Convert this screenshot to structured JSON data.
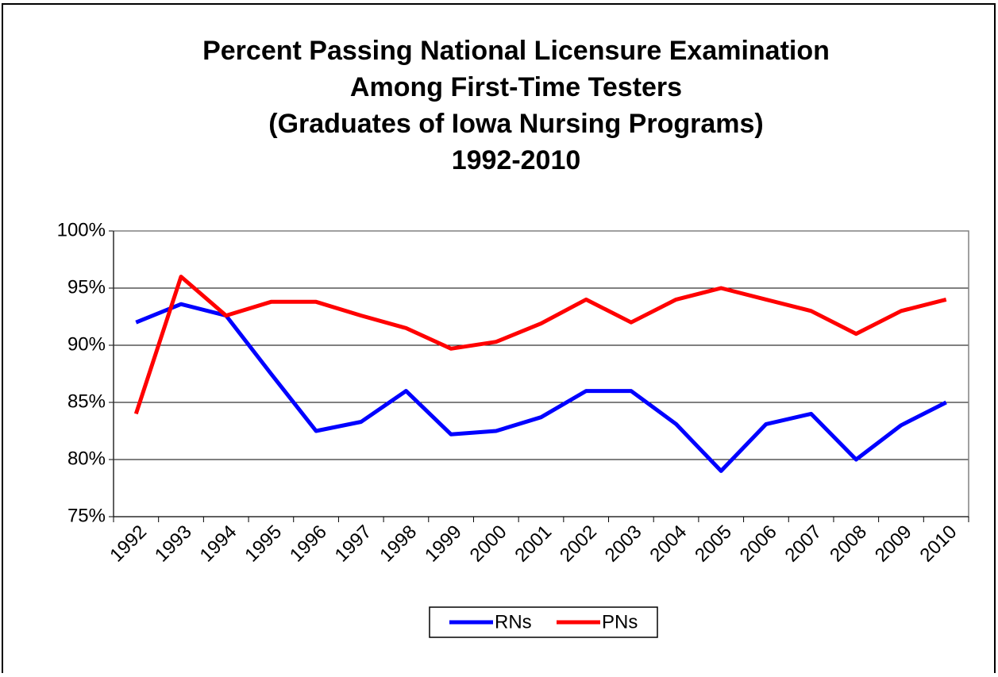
{
  "chart_data": {
    "type": "line",
    "title": [
      "Percent Passing National Licensure Examination",
      "Among First-Time Testers",
      "(Graduates of Iowa Nursing Programs)",
      "1992-2010"
    ],
    "categories": [
      "1992",
      "1993",
      "1994",
      "1995",
      "1996",
      "1997",
      "1998",
      "1999",
      "2000",
      "2001",
      "2002",
      "2003",
      "2004",
      "2005",
      "2006",
      "2007",
      "2008",
      "2009",
      "2010"
    ],
    "series": [
      {
        "name": "RNs",
        "color": "#0000ff",
        "values": [
          92.0,
          93.6,
          92.6,
          87.5,
          82.5,
          83.3,
          86.0,
          82.2,
          82.5,
          83.7,
          86.0,
          86.0,
          83.1,
          79.0,
          83.1,
          84.0,
          80.0,
          83.0,
          85.0
        ]
      },
      {
        "name": "PNs",
        "color": "#ff0000",
        "values": [
          84.0,
          96.0,
          92.6,
          93.8,
          93.8,
          92.6,
          91.5,
          89.7,
          90.3,
          91.9,
          94.0,
          92.0,
          94.0,
          95.0,
          94.0,
          93.0,
          91.0,
          93.0,
          94.0
        ]
      }
    ],
    "ylim": [
      75,
      100
    ],
    "yticks": [
      {
        "value": 75,
        "label": "75%"
      },
      {
        "value": 80,
        "label": "80%"
      },
      {
        "value": 85,
        "label": "85%"
      },
      {
        "value": 90,
        "label": "90%"
      },
      {
        "value": 95,
        "label": "95%"
      },
      {
        "value": 100,
        "label": "100%"
      }
    ],
    "grid": true,
    "legend": "bottom"
  }
}
